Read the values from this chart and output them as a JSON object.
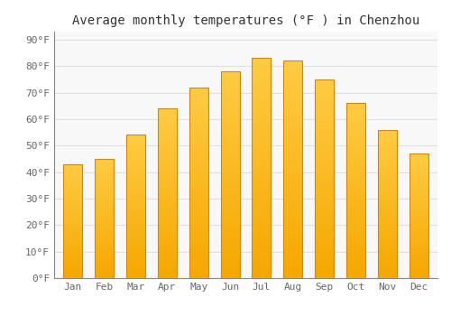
{
  "title": "Average monthly temperatures (°F ) in Chenzhou",
  "months": [
    "Jan",
    "Feb",
    "Mar",
    "Apr",
    "May",
    "Jun",
    "Jul",
    "Aug",
    "Sep",
    "Oct",
    "Nov",
    "Dec"
  ],
  "values": [
    43,
    45,
    54,
    64,
    72,
    78,
    83,
    82,
    75,
    66,
    56,
    47
  ],
  "bar_color_bottom": "#F5A800",
  "bar_color_top": "#FFCC44",
  "bar_border_color": "#D4870A",
  "ylim": [
    0,
    93
  ],
  "yticks": [
    0,
    10,
    20,
    30,
    40,
    50,
    60,
    70,
    80,
    90
  ],
  "ylabel_suffix": "°F",
  "bg_color": "#FFFFFF",
  "plot_bg_color": "#F8F8F8",
  "grid_color": "#E0E0E0",
  "title_fontsize": 10,
  "tick_fontsize": 8,
  "tick_color": "#666666",
  "title_color": "#333333"
}
